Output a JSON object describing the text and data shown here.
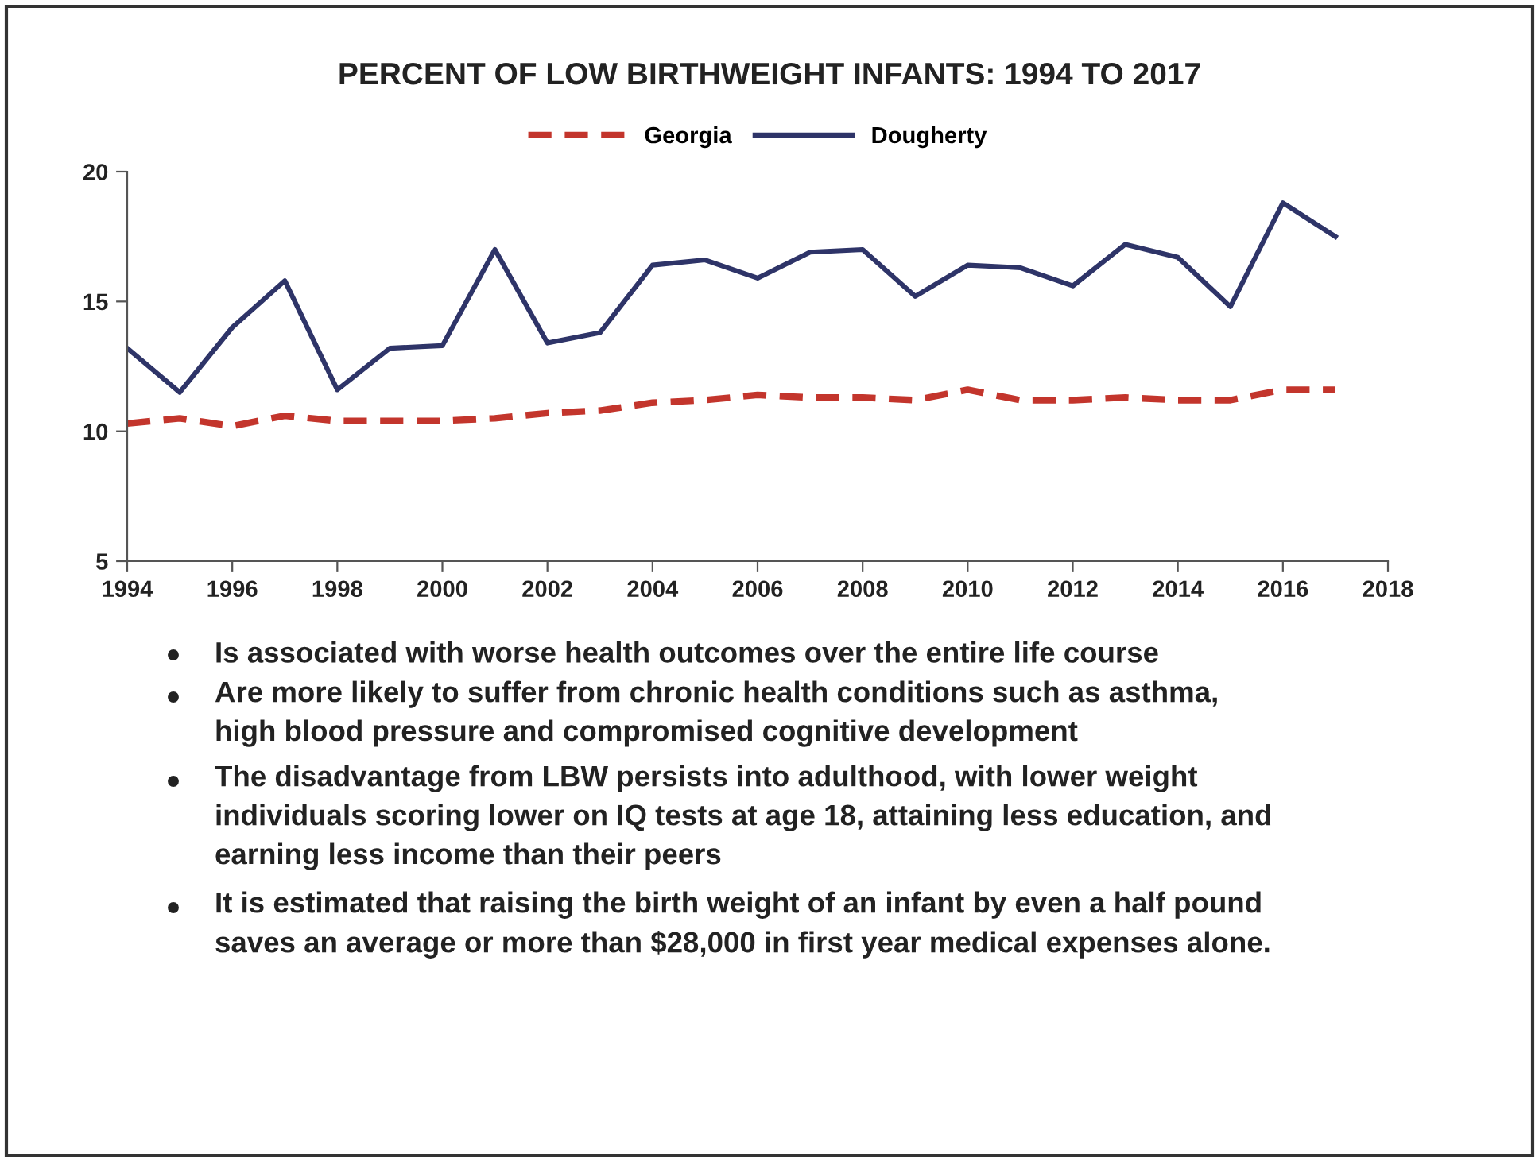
{
  "chart_data": {
    "type": "line",
    "title": "PERCENT OF LOW BIRTHWEIGHT INFANTS: 1994 TO 2017",
    "x": [
      1994,
      1995,
      1996,
      1997,
      1998,
      1999,
      2000,
      2001,
      2002,
      2003,
      2004,
      2005,
      2006,
      2007,
      2008,
      2009,
      2010,
      2011,
      2012,
      2013,
      2014,
      2015,
      2016,
      2017
    ],
    "series": [
      {
        "name": "Georgia",
        "color": "#c3352c",
        "line_style": "dashed",
        "values": [
          10.3,
          10.5,
          10.2,
          10.6,
          10.4,
          10.4,
          10.4,
          10.5,
          10.7,
          10.8,
          11.1,
          11.2,
          11.4,
          11.3,
          11.3,
          11.2,
          11.6,
          11.2,
          11.2,
          11.3,
          11.2,
          11.2,
          11.6,
          11.6
        ]
      },
      {
        "name": "Dougherty",
        "color": "#2e3468",
        "line_style": "solid",
        "values": [
          13.2,
          11.5,
          14.0,
          15.8,
          11.6,
          13.2,
          13.3,
          17.0,
          13.4,
          13.8,
          16.4,
          16.6,
          15.9,
          16.9,
          17.0,
          15.2,
          16.4,
          16.3,
          15.6,
          17.2,
          16.7,
          14.8,
          18.8,
          17.5
        ]
      }
    ],
    "xlim": [
      1994,
      2018
    ],
    "xticks": [
      1994,
      1996,
      1998,
      2000,
      2002,
      2004,
      2006,
      2008,
      2010,
      2012,
      2014,
      2016,
      2018
    ],
    "ylim": [
      5,
      20
    ],
    "yticks": [
      5,
      10,
      15,
      20
    ],
    "grid": false,
    "legend": "top",
    "marker": "none",
    "annotations": [
      "Is associated with worse health outcomes over the entire life course",
      "Are more likely to suffer from chronic health conditions such as asthma,\nhigh blood pressure and compromised cognitive development",
      "The disadvantage from LBW persists into adulthood, with lower weight\nindividuals scoring lower on IQ tests at age 18, attaining less education, and\nearning less income than their peers",
      "It is estimated that raising the birth weight of an infant by even a half pound\nsaves an average or more than $28,000 in first year medical expenses alone."
    ]
  }
}
